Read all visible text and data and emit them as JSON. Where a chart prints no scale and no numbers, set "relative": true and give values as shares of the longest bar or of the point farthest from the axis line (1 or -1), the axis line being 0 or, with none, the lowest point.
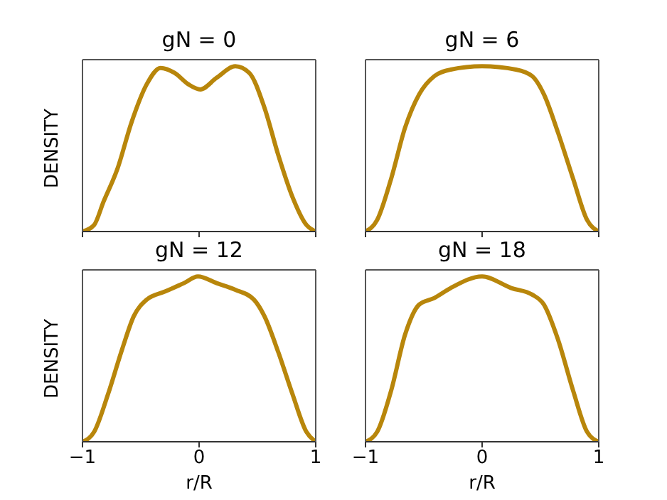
{
  "chart_data": [
    {
      "type": "line",
      "title": "gN = 0",
      "ylabel": "DENSITY",
      "relative": true,
      "xlim": [
        -1,
        1
      ],
      "xticks": [
        -1,
        0,
        1
      ],
      "tick_labels": false,
      "marker": "none",
      "x": [
        -1,
        -0.9,
        -0.82,
        -0.7,
        -0.58,
        -0.45,
        -0.33,
        -0.21,
        -0.09,
        0.01,
        0.15,
        0.31,
        0.43,
        0.56,
        0.68,
        0.8,
        0.92,
        1
      ],
      "series": [
        {
          "color": "#b8860b",
          "values": [
            0,
            0.04,
            0.18,
            0.38,
            0.66,
            0.89,
            0.99,
            0.96,
            0.89,
            0.86,
            0.93,
            1,
            0.96,
            0.75,
            0.46,
            0.21,
            0.04,
            0
          ]
        }
      ]
    },
    {
      "type": "line",
      "title": "gN = 6",
      "relative": true,
      "xlim": [
        -1,
        1
      ],
      "xticks": [
        -1,
        0,
        1
      ],
      "tick_labels": false,
      "marker": "none",
      "x": [
        -1,
        -0.9,
        -0.78,
        -0.66,
        -0.54,
        -0.41,
        -0.27,
        0,
        0.29,
        0.43,
        0.53,
        0.65,
        0.78,
        0.9,
        1
      ],
      "series": [
        {
          "color": "#b8860b",
          "values": [
            0,
            0.07,
            0.32,
            0.63,
            0.83,
            0.94,
            0.98,
            1,
            0.98,
            0.94,
            0.83,
            0.6,
            0.32,
            0.07,
            0
          ]
        }
      ]
    },
    {
      "type": "line",
      "title": "gN = 12",
      "xlabel": "r/R",
      "ylabel": "DENSITY",
      "relative": true,
      "xlim": [
        -1,
        1
      ],
      "xticks": [
        -1,
        0,
        1
      ],
      "tick_labels": "x",
      "marker": "none",
      "x": [
        -1,
        -0.9,
        -0.78,
        -0.66,
        -0.56,
        -0.45,
        -0.29,
        -0.13,
        -0.01,
        0.15,
        0.31,
        0.47,
        0.56,
        0.68,
        0.8,
        0.92,
        1
      ],
      "series": [
        {
          "color": "#b8860b",
          "values": [
            0,
            0.06,
            0.29,
            0.56,
            0.76,
            0.86,
            0.91,
            0.96,
            1,
            0.96,
            0.92,
            0.86,
            0.76,
            0.54,
            0.29,
            0.06,
            0
          ]
        }
      ]
    },
    {
      "type": "line",
      "title": "gN = 18",
      "xlabel": "r/R",
      "relative": true,
      "xlim": [
        -1,
        1
      ],
      "xticks": [
        -1,
        0,
        1
      ],
      "tick_labels": "x",
      "marker": "none",
      "x": [
        -1,
        -0.9,
        -0.78,
        -0.66,
        -0.54,
        -0.41,
        -0.27,
        0,
        0.25,
        0.43,
        0.53,
        0.65,
        0.78,
        0.9,
        1
      ],
      "series": [
        {
          "color": "#b8860b",
          "values": [
            0,
            0.06,
            0.31,
            0.65,
            0.83,
            0.87,
            0.93,
            1,
            0.93,
            0.89,
            0.83,
            0.62,
            0.31,
            0.06,
            0
          ]
        }
      ]
    }
  ]
}
